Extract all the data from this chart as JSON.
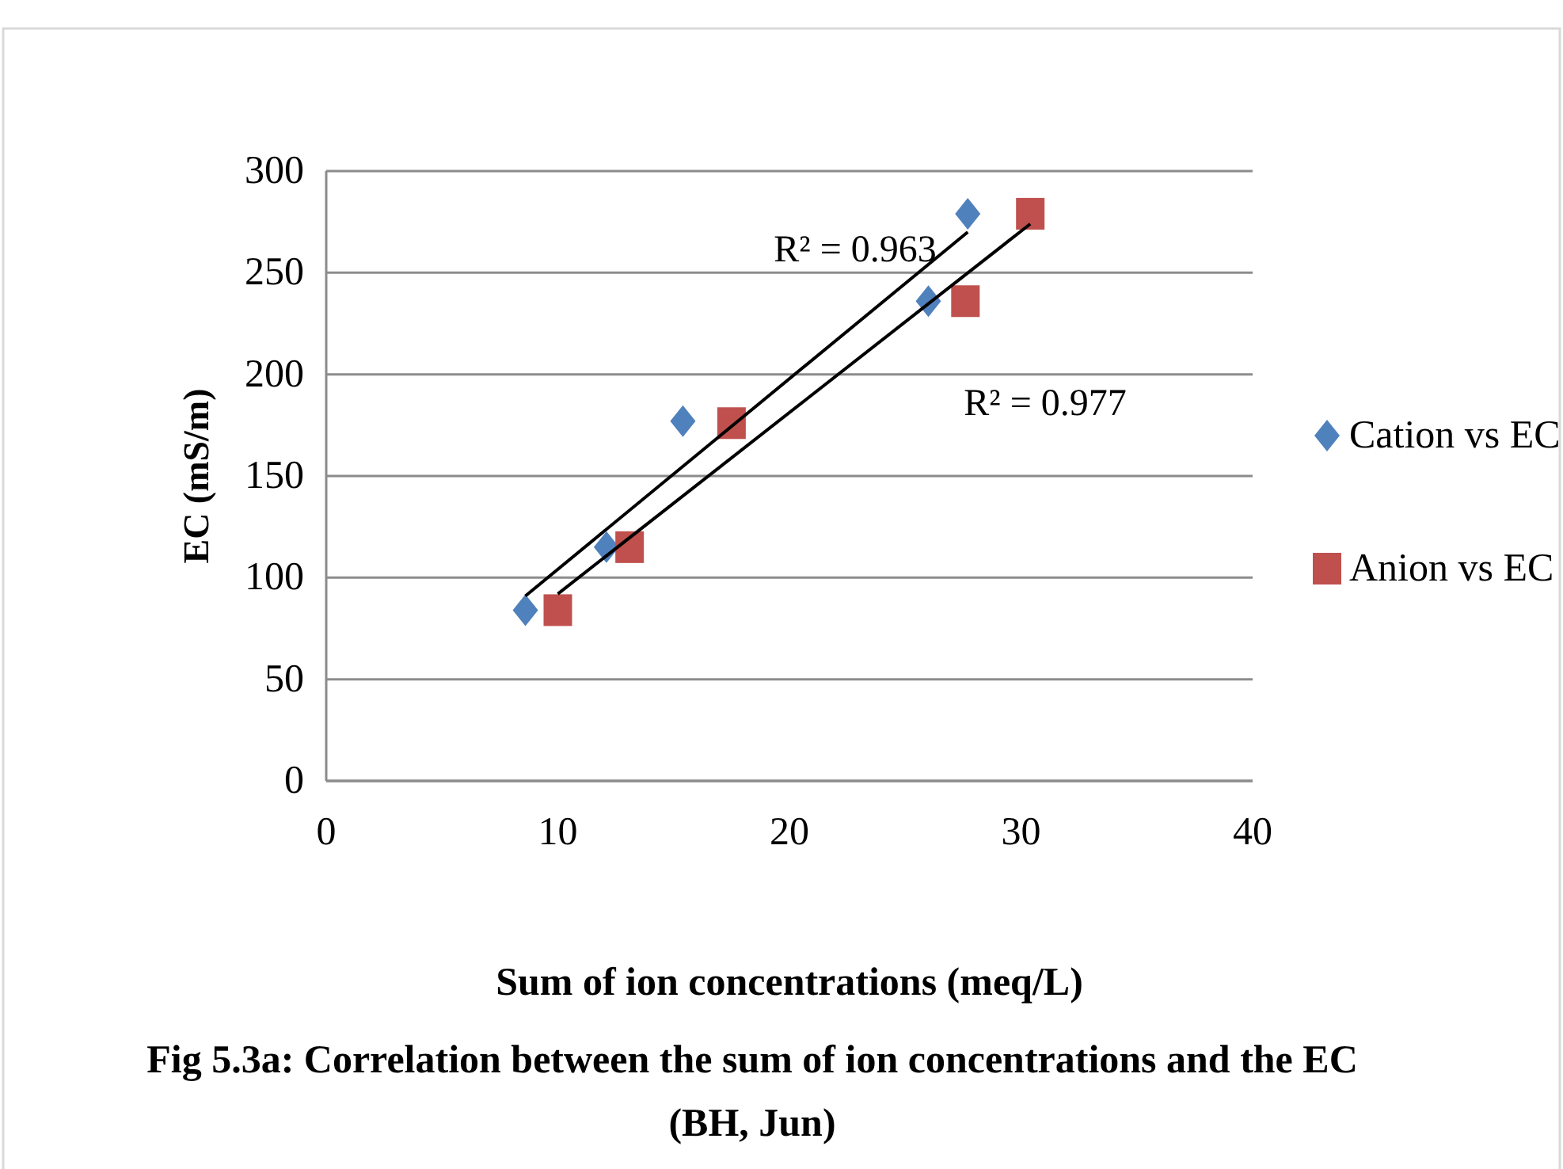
{
  "chart_data": {
    "type": "scatter",
    "title": "Fig 5.3a: Correlation between  the sum of ion concentrations and the  EC (BH, Jun)",
    "xlabel": "Sum of ion concentrations (meq/L)",
    "ylabel": "EC (mS/m)",
    "xlim": [
      0,
      40
    ],
    "xticks": [
      0,
      10,
      20,
      30,
      40
    ],
    "ylim": [
      0,
      300
    ],
    "yticks": [
      0,
      50,
      100,
      150,
      200,
      250,
      300
    ],
    "grid": "y",
    "legend": "right",
    "series": [
      {
        "name": "Cation vs EC",
        "color": "#4f81bd",
        "marker": "diamond",
        "x": [
          8.6,
          12.1,
          15.4,
          26.0,
          27.7
        ],
        "values": [
          84,
          115,
          177,
          236,
          279
        ]
      },
      {
        "name": "Anion vs EC",
        "color": "#c0504d",
        "marker": "square",
        "x": [
          10.0,
          13.1,
          17.5,
          27.6,
          30.4
        ],
        "values": [
          84,
          115,
          176,
          236,
          279
        ]
      },
      {
        "type": "line",
        "color": "#000000",
        "marker": "none",
        "x": [
          8.6,
          27.7
        ],
        "values": [
          91,
          270
        ]
      },
      {
        "type": "line",
        "color": "#000000",
        "marker": "none",
        "x": [
          10.0,
          30.4
        ],
        "values": [
          92,
          274
        ]
      }
    ],
    "annotations": [
      "R² = 0.963",
      "R² = 0.977"
    ]
  }
}
